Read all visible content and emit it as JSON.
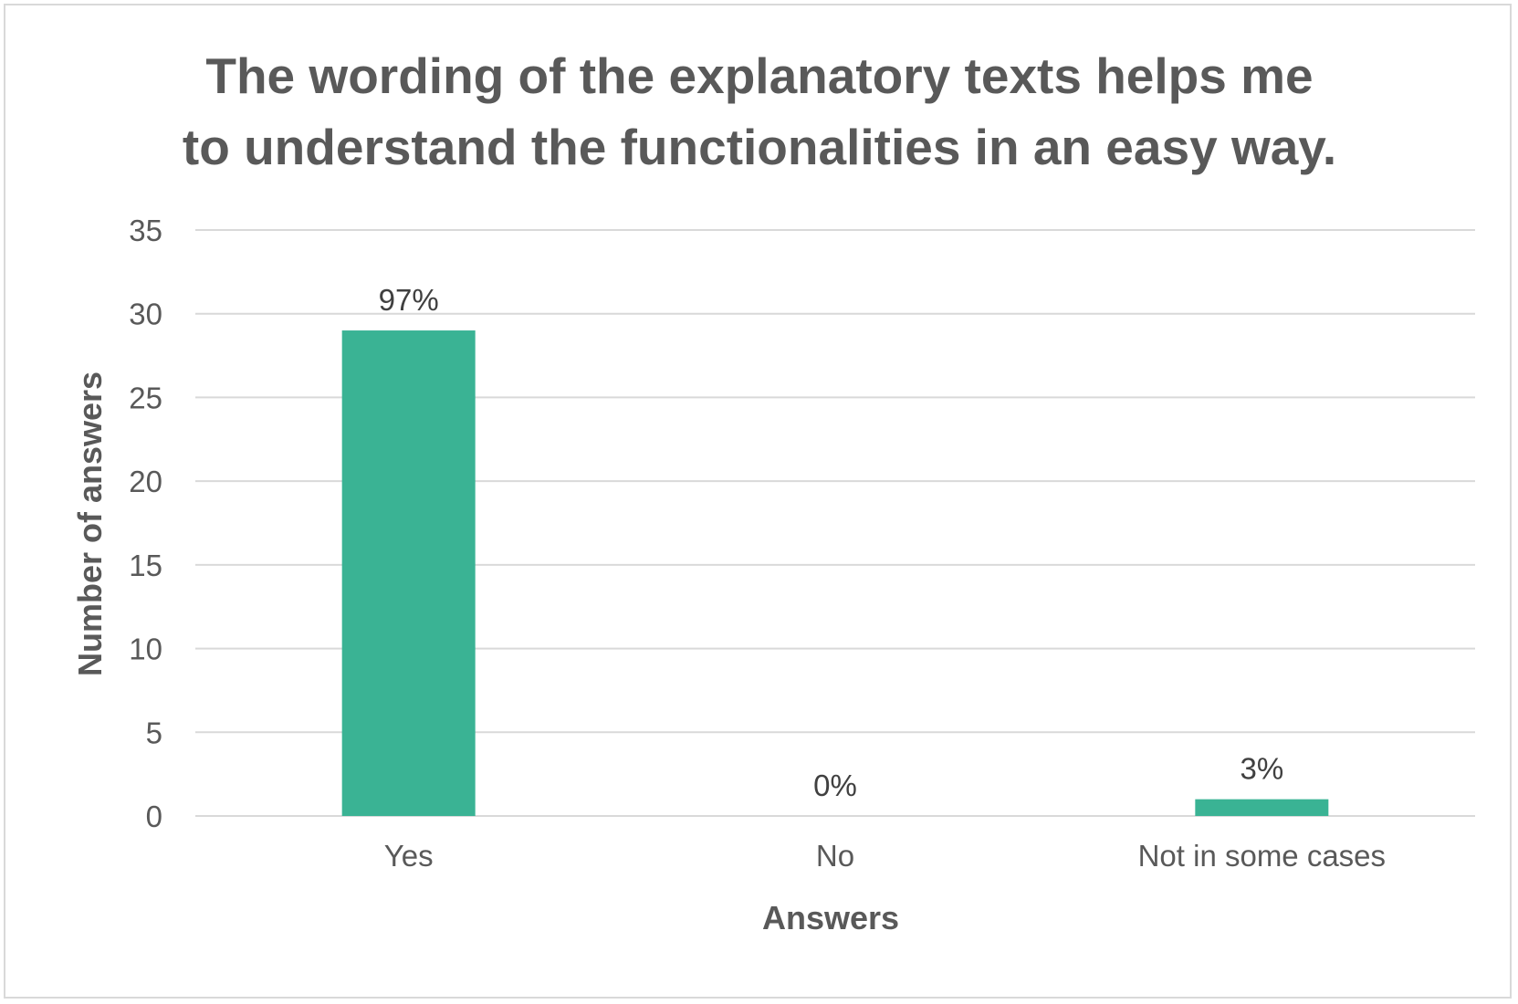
{
  "chart_data": {
    "type": "bar",
    "title_lines": [
      "The wording of the explanatory texts helps me",
      "to understand the functionalities in an easy way."
    ],
    "xlabel": "Answers",
    "ylabel": "Number of answers",
    "categories": [
      "Yes",
      "No",
      "Not in some cases"
    ],
    "values": [
      29,
      0,
      1
    ],
    "data_labels": [
      "97%",
      "0%",
      "3%"
    ],
    "ylim": [
      0,
      35
    ],
    "yticks": [
      "0",
      "5",
      "10",
      "15",
      "20",
      "25",
      "30",
      "35"
    ],
    "grid": true,
    "legend": "none",
    "bar_color": "#3ab394",
    "grid_color": "#d9d9d9"
  }
}
